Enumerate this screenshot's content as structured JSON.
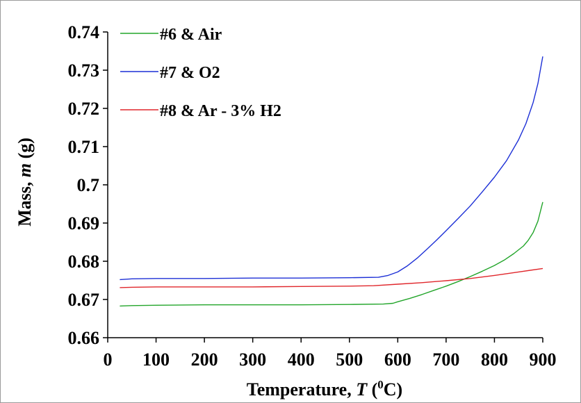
{
  "chart_data": {
    "type": "line",
    "title": "",
    "xlabel_prefix": "Temperature, ",
    "xlabel_symbol": "T",
    "xlabel_unit_open": " (",
    "xlabel_superscript": "0",
    "xlabel_unit_close": "C)",
    "ylabel_prefix": "Mass, ",
    "ylabel_symbol": "m",
    "ylabel_unit": " (g)",
    "xlim": [
      0,
      900
    ],
    "ylim": [
      0.66,
      0.74
    ],
    "xticks": [
      "0",
      "100",
      "200",
      "300",
      "400",
      "500",
      "600",
      "700",
      "800",
      "900"
    ],
    "xtick_values": [
      0,
      100,
      200,
      300,
      400,
      500,
      600,
      700,
      800,
      900
    ],
    "yticks": [
      "0.66",
      "0.67",
      "0.68",
      "0.69",
      "0.7",
      "0.71",
      "0.72",
      "0.73",
      "0.74"
    ],
    "ytick_values": [
      0.66,
      0.67,
      0.68,
      0.69,
      0.7,
      0.71,
      0.72,
      0.73,
      0.74
    ],
    "grid": false,
    "legend_position": "top-left",
    "series": [
      {
        "name": "#6 & Air",
        "color": "#22a52a",
        "x": [
          25,
          50,
          100,
          200,
          300,
          400,
          500,
          570,
          590,
          600,
          625,
          650,
          675,
          700,
          725,
          750,
          775,
          800,
          820,
          840,
          860,
          870,
          880,
          890,
          900
        ],
        "y": [
          0.6683,
          0.6684,
          0.6685,
          0.6686,
          0.6686,
          0.6686,
          0.6687,
          0.6688,
          0.669,
          0.6694,
          0.6703,
          0.6713,
          0.6724,
          0.6735,
          0.6747,
          0.676,
          0.6774,
          0.6789,
          0.6803,
          0.682,
          0.684,
          0.6855,
          0.6875,
          0.6905,
          0.6955
        ]
      },
      {
        "name": "#7 & O2",
        "color": "#1c2fd6",
        "x": [
          25,
          50,
          100,
          200,
          300,
          400,
          500,
          560,
          580,
          600,
          620,
          640,
          660,
          680,
          700,
          725,
          750,
          775,
          800,
          825,
          850,
          865,
          880,
          890,
          900
        ],
        "y": [
          0.6752,
          0.6754,
          0.6755,
          0.6755,
          0.6756,
          0.6756,
          0.6757,
          0.6758,
          0.6763,
          0.6772,
          0.6788,
          0.6808,
          0.6831,
          0.6855,
          0.688,
          0.6912,
          0.6945,
          0.6982,
          0.702,
          0.7063,
          0.7118,
          0.716,
          0.7215,
          0.7265,
          0.7336
        ]
      },
      {
        "name": "#8 & Ar - 3% H2",
        "color": "#e0262b",
        "x": [
          25,
          50,
          100,
          200,
          300,
          400,
          500,
          550,
          600,
          650,
          700,
          750,
          800,
          850,
          900
        ],
        "y": [
          0.6731,
          0.6732,
          0.6733,
          0.6733,
          0.6733,
          0.6734,
          0.6735,
          0.6736,
          0.674,
          0.6744,
          0.6749,
          0.6755,
          0.6763,
          0.6772,
          0.6781
        ]
      }
    ]
  }
}
